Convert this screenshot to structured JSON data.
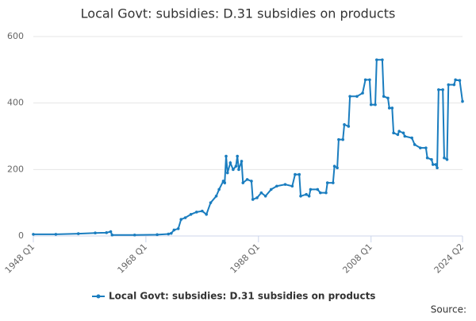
{
  "chart_data": {
    "type": "line",
    "title": "Local Govt: subsidies: D.31 subsidies on products",
    "source": "Source:",
    "x": [
      1948,
      1952,
      1956,
      1959,
      1961,
      1961.75,
      1962,
      1966,
      1970,
      1972,
      1972.5,
      1973,
      1973.75,
      1974.25,
      1975,
      1976,
      1977,
      1978,
      1978.75,
      1979.5,
      1980.5,
      1981,
      1981.75,
      1982,
      1982.25,
      1982.5,
      1983,
      1983.5,
      1984,
      1984.25,
      1984.5,
      1985,
      1985.25,
      1986,
      1986.75,
      1987,
      1987.75,
      1988.5,
      1989.25,
      1990.25,
      1991.25,
      1992.75,
      1994,
      1994.5,
      1995.25,
      1995.5,
      1996.5,
      1997,
      1997.25,
      1998.5,
      1999,
      2000,
      2000.25,
      2001.25,
      2001.5,
      2002,
      2002.25,
      2003,
      2003.25,
      2004,
      2004.25,
      2005.5,
      2006.5,
      2007,
      2007.75,
      2008,
      2008.75,
      2009,
      2010,
      2010.25,
      2011,
      2011.25,
      2011.75,
      2012,
      2012.75,
      2013,
      2013.75,
      2014,
      2015.25,
      2015.75,
      2016.75,
      2017.75,
      2018,
      2018.75,
      2019,
      2019.5,
      2019.75,
      2020,
      2020.75,
      2021,
      2021.5,
      2021.75,
      2022.75,
      2023,
      2023.75,
      2024.25
    ],
    "series": [
      {
        "name": "Local Govt: subsidies: D.31 subsidies on products",
        "color": "#1a7dbf",
        "values": [
          5,
          5,
          7,
          9,
          10,
          13,
          3,
          3,
          4,
          6,
          8,
          18,
          22,
          50,
          55,
          65,
          72,
          75,
          65,
          100,
          120,
          140,
          165,
          160,
          240,
          190,
          220,
          200,
          210,
          240,
          200,
          225,
          160,
          170,
          165,
          110,
          115,
          130,
          120,
          140,
          150,
          155,
          150,
          185,
          185,
          120,
          125,
          120,
          140,
          140,
          130,
          130,
          160,
          160,
          210,
          205,
          290,
          290,
          335,
          330,
          420,
          420,
          430,
          470,
          470,
          395,
          395,
          530,
          530,
          420,
          415,
          385,
          385,
          310,
          305,
          315,
          310,
          300,
          295,
          275,
          265,
          265,
          235,
          230,
          215,
          215,
          205,
          440,
          440,
          235,
          230,
          455,
          455,
          470,
          468,
          405
        ]
      }
    ],
    "xlim": [
      1948,
      2024.25
    ],
    "xticks": [
      {
        "value": 1948,
        "label": "1948 Q1"
      },
      {
        "value": 1968,
        "label": "1968 Q1"
      },
      {
        "value": 1988,
        "label": "1988 Q1"
      },
      {
        "value": 2008,
        "label": "2008 Q1"
      },
      {
        "value": 2024.25,
        "label": "2024 Q2"
      }
    ],
    "ylim": [
      0,
      600
    ],
    "yticks": [
      0,
      200,
      400,
      600
    ],
    "grid": true
  }
}
